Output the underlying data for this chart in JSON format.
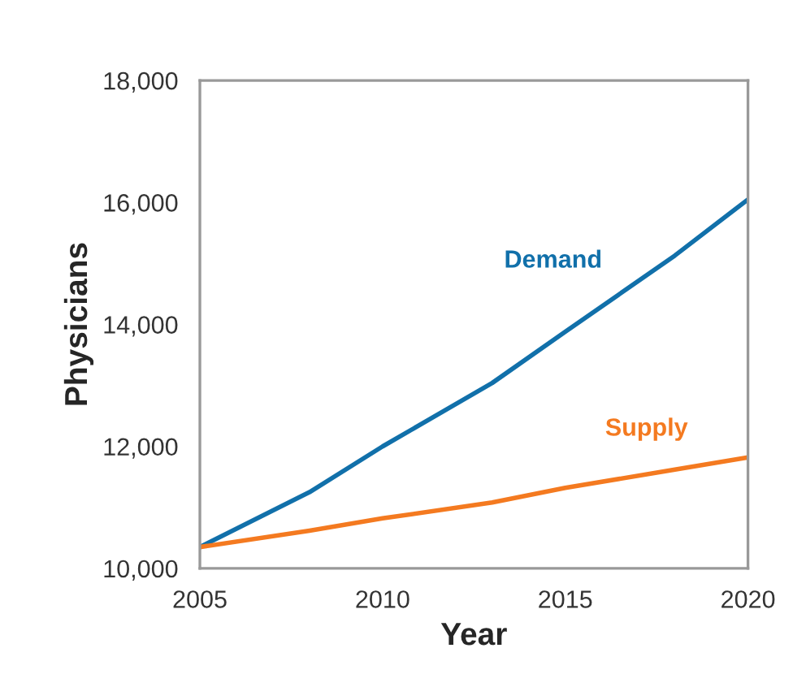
{
  "chart_data": {
    "type": "line",
    "xlabel": "Year",
    "ylabel": "Physicians",
    "x": [
      2005,
      2008,
      2010,
      2013,
      2015,
      2018,
      2020
    ],
    "series": [
      {
        "name": "Demand",
        "color": "#1170aa",
        "values": [
          10350,
          11250,
          12000,
          13040,
          13880,
          15130,
          16050
        ]
      },
      {
        "name": "Supply",
        "color": "#f47a20",
        "values": [
          10350,
          10620,
          10820,
          11080,
          11320,
          11620,
          11820
        ]
      }
    ],
    "xlim": [
      2005,
      2020
    ],
    "xticks": [
      2005,
      2010,
      2015,
      2020
    ],
    "ylim": [
      10000,
      18000
    ],
    "yticks": [
      {
        "value": 10000,
        "label": "10,000"
      },
      {
        "value": 12000,
        "label": "12,000"
      },
      {
        "value": 14000,
        "label": "14,000"
      },
      {
        "value": 16000,
        "label": "16,000"
      },
      {
        "value": 18000,
        "label": "18,000"
      }
    ],
    "grid": false,
    "legend": false,
    "marker": "none",
    "line_style": "solid"
  }
}
